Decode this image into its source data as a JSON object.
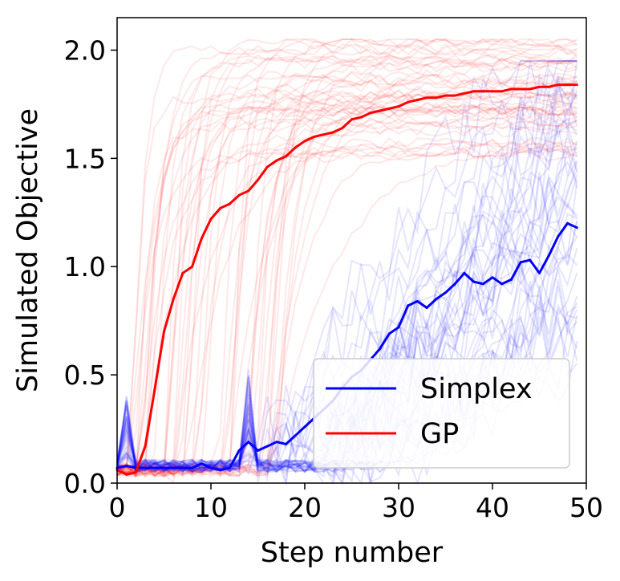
{
  "chart_data": {
    "type": "line",
    "title": "",
    "xlabel": "Step number",
    "ylabel": "Simulated Objective",
    "xlim": [
      0,
      50
    ],
    "ylim": [
      0,
      2.15
    ],
    "xticks": [
      0,
      10,
      20,
      30,
      40,
      50
    ],
    "xtick_labels": [
      "0",
      "10",
      "20",
      "30",
      "40",
      "50"
    ],
    "yticks": [
      0.0,
      0.5,
      1.0,
      1.5,
      2.0
    ],
    "ytick_labels": [
      "0.0",
      "0.5",
      "1.0",
      "1.5",
      "2.0"
    ],
    "grid": false,
    "legend": {
      "position": "bottom-right",
      "entries": [
        "Simplex",
        "GP"
      ]
    },
    "series": [
      {
        "name": "Simplex",
        "color": "#0000ff",
        "style": "mean",
        "x": [
          0,
          1,
          2,
          3,
          4,
          5,
          6,
          7,
          8,
          9,
          10,
          11,
          12,
          13,
          14,
          15,
          16,
          17,
          18,
          19,
          20,
          21,
          22,
          23,
          24,
          25,
          26,
          27,
          28,
          29,
          30,
          31,
          32,
          33,
          34,
          35,
          36,
          37,
          38,
          39,
          40,
          41,
          42,
          43,
          44,
          45,
          46,
          47,
          48,
          49
        ],
        "values": [
          0.07,
          0.08,
          0.07,
          0.07,
          0.07,
          0.07,
          0.07,
          0.07,
          0.07,
          0.09,
          0.07,
          0.06,
          0.07,
          0.15,
          0.19,
          0.15,
          0.17,
          0.19,
          0.18,
          0.22,
          0.26,
          0.3,
          0.34,
          0.38,
          0.44,
          0.49,
          0.52,
          0.57,
          0.62,
          0.69,
          0.72,
          0.82,
          0.84,
          0.81,
          0.85,
          0.88,
          0.92,
          0.97,
          0.93,
          0.92,
          0.95,
          0.92,
          0.94,
          1.02,
          1.03,
          0.97,
          1.05,
          1.14,
          1.2,
          1.18
        ]
      },
      {
        "name": "GP",
        "color": "#ff0000",
        "style": "mean",
        "x": [
          0,
          1,
          2,
          3,
          4,
          5,
          6,
          7,
          8,
          9,
          10,
          11,
          12,
          13,
          14,
          15,
          16,
          17,
          18,
          19,
          20,
          21,
          22,
          23,
          24,
          25,
          26,
          27,
          28,
          29,
          30,
          31,
          32,
          33,
          34,
          35,
          36,
          37,
          38,
          39,
          40,
          41,
          42,
          43,
          44,
          45,
          46,
          47,
          48,
          49
        ],
        "values": [
          0.06,
          0.04,
          0.05,
          0.17,
          0.43,
          0.7,
          0.85,
          0.97,
          1.0,
          1.13,
          1.22,
          1.27,
          1.29,
          1.33,
          1.35,
          1.4,
          1.46,
          1.49,
          1.51,
          1.55,
          1.58,
          1.6,
          1.61,
          1.62,
          1.64,
          1.68,
          1.69,
          1.71,
          1.72,
          1.73,
          1.74,
          1.76,
          1.77,
          1.78,
          1.78,
          1.79,
          1.79,
          1.8,
          1.81,
          1.81,
          1.81,
          1.81,
          1.82,
          1.82,
          1.82,
          1.83,
          1.83,
          1.84,
          1.84,
          1.84
        ]
      }
    ]
  }
}
